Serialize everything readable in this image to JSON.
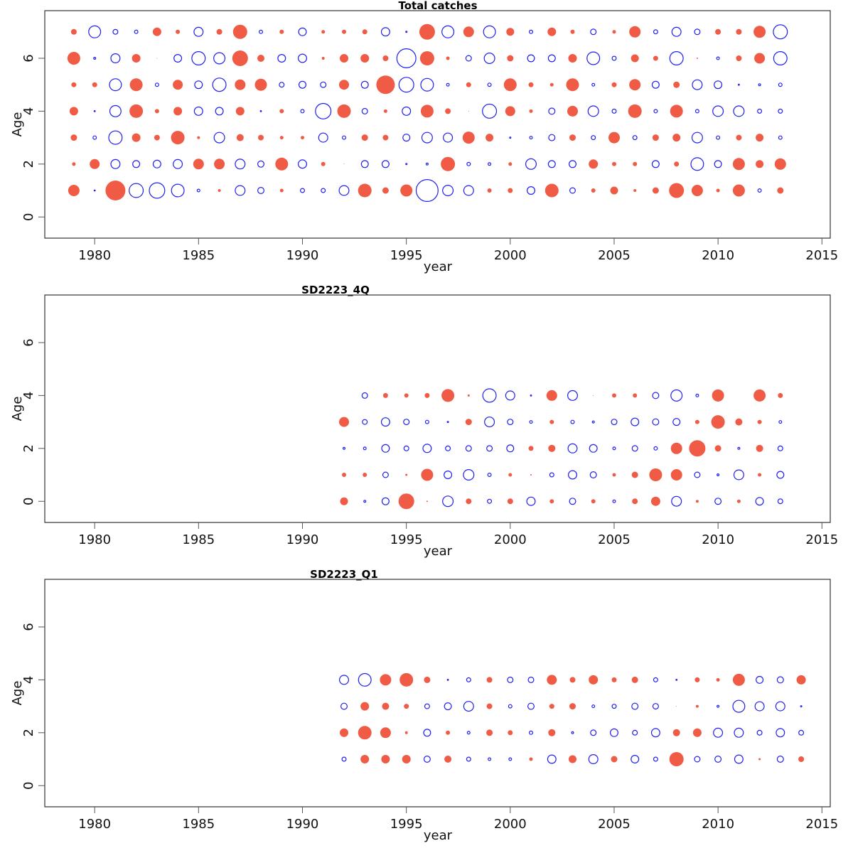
{
  "colors": {
    "positive": "#EF5B45",
    "negative": "#1F1FF2",
    "axis": "#333333"
  },
  "chart_data": [
    {
      "type": "scatter",
      "subtype": "bubble-residuals",
      "title": "Total catches",
      "xlabel": "year",
      "ylabel": "Age",
      "xlim": [
        1977.6,
        2015.4
      ],
      "ylim": [
        -0.8,
        7.8
      ],
      "xticks": [
        1980,
        1985,
        1990,
        1995,
        2000,
        2005,
        2010,
        2015
      ],
      "yticks": [
        0,
        2,
        4,
        6
      ],
      "grid": false,
      "legend": "none",
      "encoding": "bubble radius proportional to |residual|; filled = positive, open = negative",
      "years": [
        1979,
        1980,
        1981,
        1982,
        1983,
        1984,
        1985,
        1986,
        1987,
        1988,
        1989,
        1990,
        1991,
        1992,
        1993,
        1994,
        1995,
        1996,
        1997,
        1998,
        1999,
        2000,
        2001,
        2002,
        2003,
        2004,
        2005,
        2006,
        2007,
        2008,
        2009,
        2010,
        2011,
        2012,
        2013
      ],
      "series": [
        {
          "age": 1,
          "values": [
            0.8,
            -0.1,
            1.4,
            -1.05,
            -1.15,
            -0.95,
            -0.25,
            0.2,
            -0.75,
            -0.5,
            0.25,
            -0.35,
            -0.35,
            -0.75,
            0.95,
            0.45,
            0.85,
            -1.6,
            -0.8,
            -0.75,
            0.3,
            0.35,
            -0.6,
            0.95,
            -0.45,
            0.3,
            0.55,
            0.2,
            0.45,
            1.05,
            0.8,
            0.25,
            0.85,
            -0.3,
            0.45
          ]
        },
        {
          "age": 2,
          "values": [
            0.25,
            0.7,
            -0.7,
            -0.55,
            -0.6,
            -0.7,
            0.75,
            0.75,
            -0.75,
            -0.5,
            0.9,
            -0.65,
            0.3,
            0.05,
            -0.55,
            -0.55,
            -0.15,
            -0.2,
            1.0,
            -0.3,
            -0.25,
            0.25,
            -0.8,
            -0.55,
            -0.55,
            0.65,
            0.3,
            0.3,
            -0.55,
            0.35,
            -0.95,
            -0.55,
            0.85,
            0.55,
            0.8
          ]
        },
        {
          "age": 3,
          "values": [
            0.45,
            -0.3,
            -1.0,
            0.6,
            0.4,
            0.95,
            0.2,
            -0.8,
            0.5,
            0.4,
            0.25,
            0.25,
            -0.7,
            -0.3,
            0.45,
            0.4,
            -0.55,
            -0.8,
            -0.7,
            0.85,
            0.55,
            -0.15,
            -0.25,
            -0.5,
            0.45,
            -0.35,
            0.8,
            -0.35,
            0.45,
            0.55,
            -0.8,
            -0.3,
            0.4,
            0.55,
            -0.3
          ]
        },
        {
          "age": 4,
          "values": [
            0.6,
            -0.1,
            -0.85,
            0.95,
            0.3,
            0.6,
            -0.65,
            -0.6,
            0.6,
            -0.05,
            0.3,
            -0.3,
            -1.15,
            0.95,
            -0.45,
            0.25,
            -0.65,
            0.9,
            0.4,
            0.05,
            -1.05,
            0.7,
            0.25,
            -0.5,
            0.75,
            -0.8,
            -0.35,
            0.95,
            -0.3,
            0.9,
            -0.3,
            -0.8,
            -0.8,
            -0.35,
            -0.35
          ]
        },
        {
          "age": 5,
          "values": [
            0.35,
            0.35,
            -0.9,
            0.9,
            -0.3,
            0.7,
            -0.6,
            -1.0,
            0.75,
            0.85,
            -0.4,
            -0.55,
            -0.45,
            0.7,
            -0.55,
            1.3,
            -1.1,
            -0.95,
            -0.25,
            0.35,
            -0.3,
            0.9,
            0.35,
            0.25,
            0.9,
            -0.25,
            0.35,
            0.8,
            -0.55,
            0.45,
            -0.75,
            -0.6,
            -0.1,
            -0.2,
            -0.3
          ]
        },
        {
          "age": 6,
          "values": [
            0.9,
            -0.2,
            -0.7,
            0.6,
            0.05,
            -0.6,
            -1.0,
            -0.85,
            1.1,
            0.5,
            -0.6,
            -0.65,
            0.2,
            0.6,
            0.6,
            0.4,
            -1.4,
            1.0,
            0.25,
            -0.45,
            -0.8,
            0.45,
            -0.55,
            -0.55,
            0.6,
            -0.95,
            -0.35,
            0.55,
            0.35,
            -1.0,
            0.1,
            -0.25,
            0.4,
            0.75,
            -1.0
          ]
        },
        {
          "age": 7,
          "values": [
            0.4,
            -0.9,
            -0.4,
            -0.3,
            0.6,
            0.3,
            -0.7,
            0.4,
            1.0,
            -0.3,
            0.3,
            -0.6,
            0.25,
            0.3,
            0.35,
            -0.65,
            -0.15,
            1.1,
            -0.9,
            0.75,
            -0.9,
            0.55,
            -0.3,
            0.6,
            0.3,
            -0.45,
            0.25,
            0.8,
            -0.35,
            -0.7,
            -0.45,
            0.4,
            0.4,
            0.85,
            -1.05
          ]
        }
      ]
    },
    {
      "type": "scatter",
      "subtype": "bubble-residuals",
      "title": "SD2223_4Q",
      "xlabel": "year",
      "ylabel": "Age",
      "xlim": [
        1977.6,
        2015.4
      ],
      "ylim": [
        -0.8,
        7.8
      ],
      "xticks": [
        1980,
        1985,
        1990,
        1995,
        2000,
        2005,
        2010,
        2015
      ],
      "yticks": [
        0,
        2,
        4,
        6
      ],
      "grid": false,
      "legend": "none",
      "encoding": "bubble radius proportional to |residual|; filled = positive, open = negative",
      "years": [
        1992,
        1993,
        1994,
        1995,
        1996,
        1997,
        1998,
        1999,
        2000,
        2001,
        2002,
        2003,
        2004,
        2005,
        2006,
        2007,
        2008,
        2009,
        2010,
        2011,
        2012,
        2013
      ],
      "series": [
        {
          "age": 0,
          "values": [
            0.55,
            -0.2,
            -0.55,
            1.1,
            0.1,
            -0.8,
            0.4,
            -0.35,
            0.4,
            -0.65,
            0.3,
            -0.5,
            0.3,
            -0.25,
            0.4,
            0.65,
            -0.75,
            0.2,
            -0.5,
            0.25,
            -0.6,
            -0.4
          ]
        },
        {
          "age": 1,
          "values": [
            0.3,
            0.3,
            -0.45,
            0.15,
            0.85,
            -0.6,
            -0.8,
            -0.3,
            0.25,
            0.1,
            -0.35,
            -0.65,
            -0.5,
            0.25,
            0.45,
            0.9,
            0.8,
            -0.45,
            -0.2,
            -0.75,
            0.25,
            -0.55
          ]
        },
        {
          "age": 2,
          "values": [
            -0.2,
            -0.25,
            -0.6,
            -0.4,
            -0.65,
            -0.4,
            -0.45,
            -0.45,
            -0.55,
            0.35,
            0.5,
            -0.7,
            -0.6,
            -0.25,
            -0.45,
            -0.3,
            0.8,
            1.15,
            0.45,
            -0.2,
            0.5,
            -0.4
          ]
        },
        {
          "age": 3,
          "values": [
            0.7,
            -0.4,
            -0.65,
            -0.45,
            -0.3,
            -0.15,
            0.45,
            -0.75,
            -0.45,
            -0.25,
            0.3,
            -0.3,
            -0.2,
            -0.45,
            -0.6,
            -0.5,
            -0.55,
            0.3,
            0.95,
            0.5,
            0.3,
            -0.25
          ]
        },
        {
          "age": 4,
          "values": [
            0,
            -0.45,
            0.35,
            0.3,
            0.35,
            0.9,
            0.15,
            -1.0,
            -0.7,
            -0.1,
            0.75,
            -0.75,
            0.05,
            0.3,
            0.3,
            -0.5,
            -0.85,
            -0.25,
            0.85,
            0,
            0.85,
            0.35
          ]
        }
      ]
    },
    {
      "type": "scatter",
      "subtype": "bubble-residuals",
      "title": "SD2223_Q1",
      "xlabel": "year",
      "ylabel": "Age",
      "xlim": [
        1977.6,
        2015.4
      ],
      "ylim": [
        -0.8,
        7.8
      ],
      "xticks": [
        1980,
        1985,
        1990,
        1995,
        2000,
        2005,
        2010,
        2015
      ],
      "yticks": [
        0,
        2,
        4,
        6
      ],
      "grid": false,
      "legend": "none",
      "encoding": "bubble radius proportional to |residual|; filled = positive, open = negative",
      "years": [
        1992,
        1993,
        1994,
        1995,
        1996,
        1997,
        1998,
        1999,
        2000,
        2001,
        2002,
        2003,
        2004,
        2005,
        2006,
        2007,
        2008,
        2009,
        2010,
        2011,
        2012,
        2013,
        2014
      ],
      "series": [
        {
          "age": 1,
          "values": [
            -0.35,
            0.6,
            0.6,
            0.6,
            -0.5,
            0.5,
            -0.35,
            -0.25,
            -0.25,
            0.25,
            -0.65,
            0.55,
            -0.7,
            0.45,
            -0.6,
            -0.35,
            1.0,
            -0.45,
            -0.5,
            -0.65,
            0.15,
            -0.5,
            0.4
          ]
        },
        {
          "age": 2,
          "values": [
            0.6,
            0.95,
            0.75,
            0.2,
            -0.55,
            0.3,
            -0.25,
            0.45,
            0.35,
            -0.3,
            0.5,
            -0.2,
            -0.45,
            -0.6,
            -0.4,
            -0.65,
            0.5,
            0.6,
            -0.7,
            -0.7,
            -0.4,
            -0.65,
            -0.4
          ]
        },
        {
          "age": 3,
          "values": [
            -0.5,
            0.6,
            0.5,
            0.35,
            -0.4,
            -0.55,
            -0.75,
            0.4,
            -0.3,
            -0.5,
            0.35,
            0.45,
            -0.25,
            -0.35,
            -0.5,
            -0.45,
            0.05,
            0.2,
            -0.2,
            -0.9,
            -0.7,
            -0.7,
            -0.15
          ]
        },
        {
          "age": 4,
          "values": [
            -0.7,
            -0.95,
            0.8,
            0.95,
            0.45,
            -0.1,
            -0.35,
            0.4,
            -0.45,
            -0.45,
            0.7,
            0.4,
            0.65,
            0.35,
            0.45,
            -0.35,
            -0.1,
            0.35,
            0.25,
            0.85,
            -0.55,
            -0.5,
            0.65
          ]
        }
      ]
    }
  ]
}
